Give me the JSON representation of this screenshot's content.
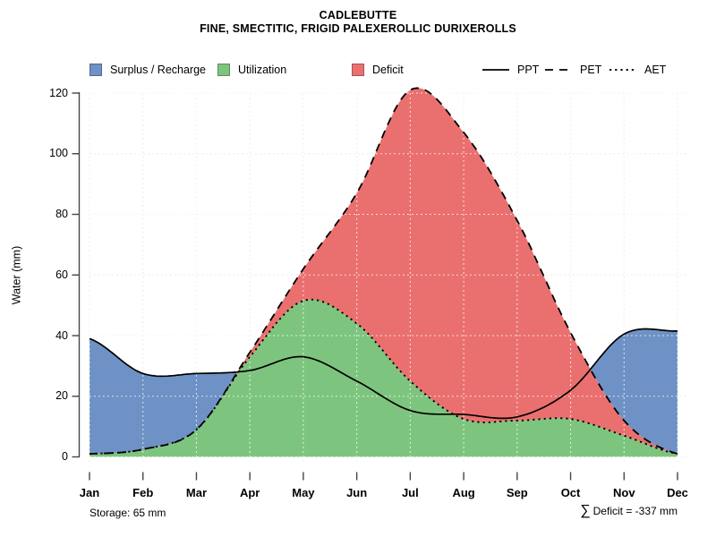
{
  "title": {
    "line1": "CADLEBUTTE",
    "line2": "FINE, SMECTITIC, FRIGID PALEXEROLLIC DURIXEROLLS"
  },
  "legend": {
    "areas": [
      {
        "label": "Surplus / Recharge",
        "color": "#6e92c5"
      },
      {
        "label": "Utilization",
        "color": "#7dc57e"
      },
      {
        "label": "Deficit",
        "color": "#ea7070"
      }
    ],
    "lines": [
      {
        "label": "PPT",
        "style": "solid"
      },
      {
        "label": "PET",
        "style": "dashed"
      },
      {
        "label": "AET",
        "style": "dotted"
      }
    ]
  },
  "y_axis": {
    "label": "Water (mm)",
    "ticks": [
      0,
      20,
      40,
      60,
      80,
      100,
      120
    ]
  },
  "x_axis": {
    "ticks": [
      "Jan",
      "Feb",
      "Mar",
      "Apr",
      "May",
      "Jun",
      "Jul",
      "Aug",
      "Sep",
      "Oct",
      "Nov",
      "Dec"
    ]
  },
  "annotations": {
    "storage": "Storage: 65 mm",
    "sigma": "∑",
    "deficit": "Deficit = -337 mm"
  },
  "colors": {
    "surplus": "#6e92c5",
    "utilization": "#7dc57e",
    "deficit": "#ea7070",
    "grid": "#cfcfcf",
    "axis": "#454545",
    "line": "#000000"
  },
  "chart_data": {
    "type": "area",
    "title": "CADLEBUTTE — FINE, SMECTITIC, FRIGID PALEXEROLLIC DURIXEROLLS",
    "ylabel": "Water (mm)",
    "ylim": [
      0,
      120
    ],
    "grid": true,
    "legend_position": "top",
    "x": [
      "Jan",
      "Feb",
      "Mar",
      "Apr",
      "May",
      "Jun",
      "Jul",
      "Aug",
      "Sep",
      "Oct",
      "Nov",
      "Dec"
    ],
    "series": [
      {
        "name": "PPT",
        "line": "solid",
        "values": [
          39,
          27.5,
          27.5,
          28.5,
          33,
          25,
          15.3,
          14,
          13.2,
          22,
          40.5,
          41.5
        ]
      },
      {
        "name": "PET",
        "line": "dashed",
        "values": [
          1,
          2.5,
          9,
          34.5,
          62,
          87,
          121,
          107,
          78,
          41,
          12,
          1
        ]
      },
      {
        "name": "AET",
        "line": "dotted",
        "values": [
          1,
          2.5,
          9,
          33,
          51.5,
          44,
          25,
          12.5,
          12,
          12.5,
          7,
          1
        ]
      }
    ],
    "areas": [
      {
        "name": "Surplus / Recharge",
        "color": "#6e92c5",
        "rule": "between PET and PPT where PPT > PET"
      },
      {
        "name": "Utilization",
        "color": "#7dc57e",
        "rule": "between 0 and AET"
      },
      {
        "name": "Deficit",
        "color": "#ea7070",
        "rule": "between AET and PET where PET > AET"
      }
    ],
    "storage_mm": 65,
    "sum_deficit_mm": -337
  }
}
